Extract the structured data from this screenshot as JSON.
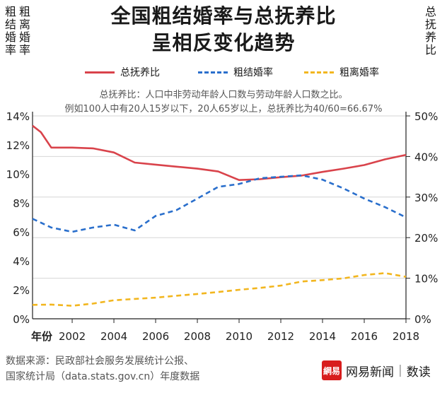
{
  "title_line1": "全国粗结婚率与总抚养比",
  "title_line2": "呈相反变化趋势",
  "left_axis_label_a": "粗结婚率",
  "left_axis_label_b": "粗离婚率",
  "right_axis_label": "总抚养比",
  "note_line1": "总抚养比：人口中非劳动年龄人口数与劳动年龄人口数之比。",
  "note_line2": "例如100人中有20人15岁以下，20人65岁以上，总抚养比为40/60=66.67%",
  "source_line1": "数据来源：民政部社会服务发展统计公报、",
  "source_line2": "国家统计局（data.stats.gov.cn）年度数据",
  "brand": "网易新闻",
  "brand_sub": "数读",
  "brand_logo_text": "網易",
  "colors": {
    "dependency": "#d9434b",
    "marriage": "#2a6fcc",
    "divorce": "#f2b61f"
  },
  "chart_data": {
    "type": "line",
    "x_label": "年份",
    "x_ticks": [
      "2002",
      "2004",
      "2006",
      "2008",
      "2010",
      "2012",
      "2014",
      "2016",
      "2018"
    ],
    "xlim": [
      2000.1,
      2018
    ],
    "left_axis": {
      "ylim": [
        0,
        14
      ],
      "ticks": [
        "0%",
        "2%",
        "4%",
        "6%",
        "8%",
        "10%",
        "12%",
        "14%"
      ],
      "tick_values": [
        0,
        2,
        4,
        6,
        8,
        10,
        12,
        14
      ]
    },
    "right_axis": {
      "ylim": [
        0,
        50
      ],
      "ticks": [
        "0%",
        "10%",
        "20%",
        "30%",
        "40%",
        "50%"
      ],
      "tick_values": [
        0,
        10,
        20,
        30,
        40,
        50
      ]
    },
    "series": [
      {
        "name": "总抚养比",
        "axis": "right",
        "style": "solid",
        "color_key": "dependency",
        "x": [
          2000.1,
          2000.5,
          2001,
          2002,
          2003,
          2004,
          2005,
          2006,
          2007,
          2008,
          2009,
          2010,
          2011,
          2012,
          2013,
          2014,
          2015,
          2016,
          2017,
          2018
        ],
        "values": [
          47.6,
          46.0,
          42.2,
          42.2,
          42.0,
          41.0,
          38.5,
          38.0,
          37.5,
          37.0,
          36.3,
          34.2,
          34.4,
          34.9,
          35.3,
          36.2,
          37.0,
          37.9,
          39.3,
          40.4
        ]
      },
      {
        "name": "粗结婚率",
        "axis": "left",
        "style": "dashed",
        "color_key": "marriage",
        "x": [
          2000.1,
          2001,
          2002,
          2003,
          2004,
          2005,
          2006,
          2007,
          2008,
          2009,
          2010,
          2011,
          2012,
          2013,
          2014,
          2015,
          2016,
          2017,
          2018
        ],
        "values": [
          6.9,
          6.3,
          6.0,
          6.3,
          6.5,
          6.1,
          7.1,
          7.5,
          8.3,
          9.1,
          9.3,
          9.7,
          9.8,
          9.9,
          9.6,
          9.0,
          8.3,
          7.7,
          7.0
        ]
      },
      {
        "name": "粗离婚率",
        "axis": "left",
        "style": "dashed",
        "color_key": "divorce",
        "x": [
          2000.1,
          2001,
          2002,
          2003,
          2004,
          2005,
          2006,
          2007,
          2008,
          2009,
          2010,
          2011,
          2012,
          2013,
          2014,
          2015,
          2016,
          2017,
          2018
        ],
        "values": [
          0.96,
          0.98,
          0.9,
          1.05,
          1.28,
          1.37,
          1.46,
          1.59,
          1.71,
          1.85,
          2.0,
          2.13,
          2.29,
          2.57,
          2.67,
          2.79,
          3.02,
          3.15,
          2.9
        ]
      }
    ]
  }
}
